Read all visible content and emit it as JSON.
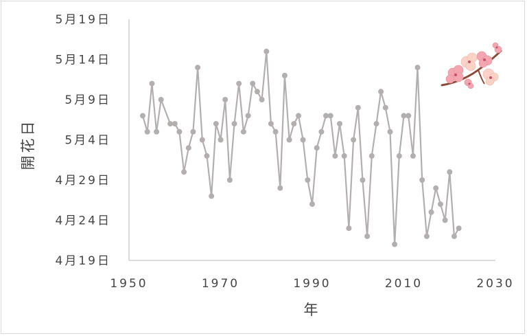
{
  "chart_data": {
    "type": "line",
    "title": "",
    "xlabel": "年",
    "ylabel": "開花日",
    "xlim": [
      1950,
      2030
    ],
    "x_ticks": [
      "1950",
      "1970",
      "1990",
      "2010",
      "2030"
    ],
    "y_ticks": [
      "4月19日",
      "4月24日",
      "4月29日",
      "5月4日",
      "5月9日",
      "5月14日",
      "5月19日"
    ],
    "ylim_days_from_apr19": [
      0,
      30
    ],
    "grid": false,
    "legend": "none",
    "line_color": "#b4afaf",
    "marker_color": "#b4afaf",
    "series": [
      {
        "x": [
          1953,
          1954,
          1955,
          1956,
          1957,
          1959,
          1960,
          1961,
          1962,
          1963,
          1964,
          1965,
          1966,
          1967,
          1968,
          1969,
          1970,
          1971,
          1972,
          1973,
          1974,
          1975,
          1976,
          1977,
          1978,
          1979,
          1980,
          1981,
          1982,
          1983,
          1984,
          1985,
          1986,
          1987,
          1988,
          1989,
          1990,
          1991,
          1992,
          1993,
          1994,
          1995,
          1996,
          1997,
          1998,
          1999,
          2000,
          2001,
          2002,
          2003,
          2004,
          2005,
          2006,
          2007,
          2008,
          2009,
          2010,
          2011,
          2012,
          2013,
          2014,
          2015,
          2016,
          2017,
          2018,
          2019,
          2020,
          2021,
          2022
        ],
        "y": [
          "5月7日",
          "5月5日",
          "5月11日",
          "5月5日",
          "5月9日",
          "5月6日",
          "5月6日",
          "5月5日",
          "4月30日",
          "5月3日",
          "5月5日",
          "5月13日",
          "5月4日",
          "5月2日",
          "4月27日",
          "5月6日",
          "5月4日",
          "5月9日",
          "4月29日",
          "5月6日",
          "5月11日",
          "5月5日",
          "5月7日",
          "5月11日",
          "5月10日",
          "5月9日",
          "5月15日",
          "5月6日",
          "5月5日",
          "4月28日",
          "5月12日",
          "5月4日",
          "5月6日",
          "5月7日",
          "5月4日",
          "4月29日",
          "4月26日",
          "5月3日",
          "5月5日",
          "5月7日",
          "5月7日",
          "5月2日",
          "5月6日",
          "5月2日",
          "4月23日",
          "5月4日",
          "5月8日",
          "4月29日",
          "4月22日",
          "5月2日",
          "5月6日",
          "5月10日",
          "5月8日",
          "5月5日",
          "4月21日",
          "5月2日",
          "5月7日",
          "5月7日",
          "5月2日",
          "5月13日",
          "4月29日",
          "4月22日",
          "4月25日",
          "4月28日",
          "4月26日",
          "4月24日",
          "4月30日",
          "4月22日",
          "4月23日"
        ]
      }
    ]
  },
  "decoration": {
    "icon": "cherry-blossom-branch-icon"
  }
}
